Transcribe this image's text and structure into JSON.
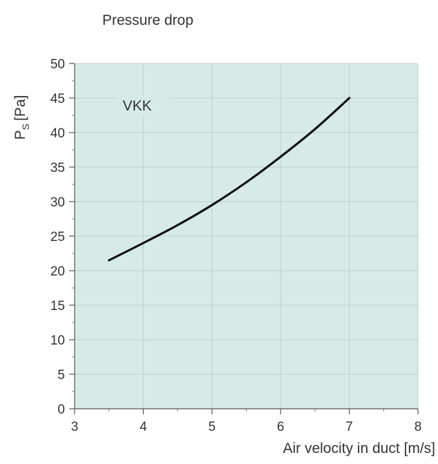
{
  "chart_data": {
    "type": "line",
    "title": "Pressure drop",
    "xlabel": "Air velocity in duct [m/s]",
    "ylabel_main": "P",
    "ylabel_sub": "S",
    "ylabel_unit": "[Pa]",
    "xlim": [
      3,
      8
    ],
    "ylim": [
      0,
      50
    ],
    "xticks": [
      3,
      4,
      5,
      6,
      7,
      8
    ],
    "yticks": [
      0,
      5,
      10,
      15,
      20,
      25,
      30,
      35,
      40,
      45,
      50
    ],
    "grid": true,
    "series": [
      {
        "name": "VKK",
        "x": [
          3.5,
          4.0,
          4.5,
          5.0,
          5.5,
          6.0,
          6.5,
          7.0
        ],
        "y": [
          21.5,
          24.0,
          26.6,
          29.5,
          32.8,
          36.5,
          40.5,
          45.0
        ]
      }
    ],
    "colors": {
      "plot_background": "#d6ebe6",
      "grid": "#c0cfcb",
      "line": "#111111",
      "text": "#333333"
    }
  }
}
